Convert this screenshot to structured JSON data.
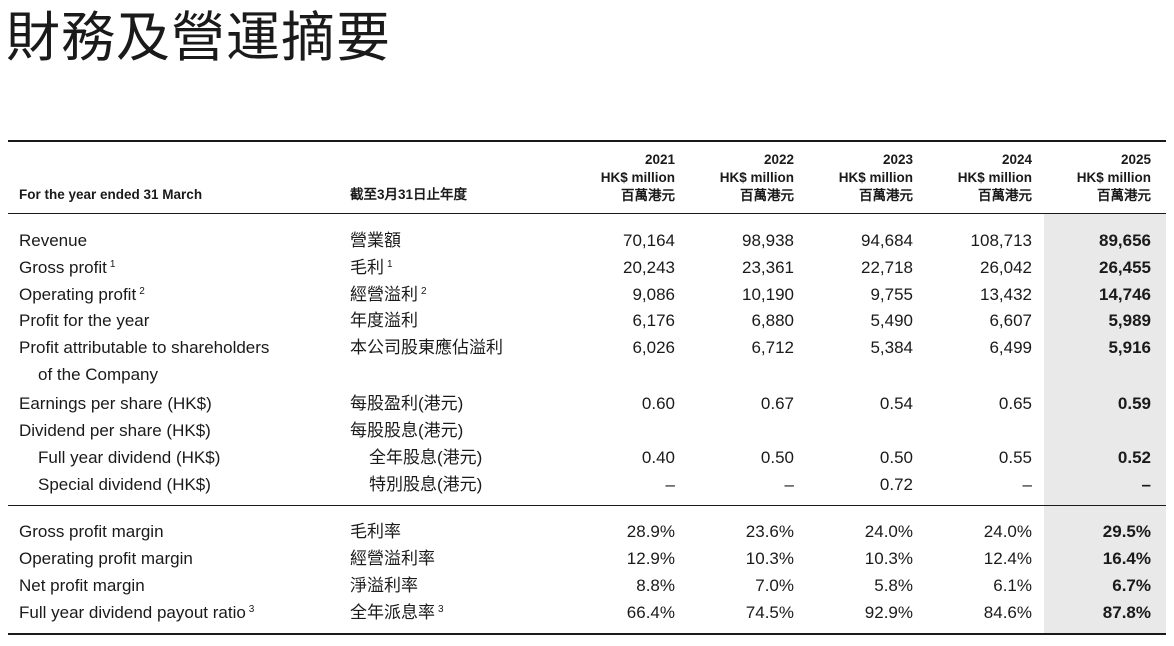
{
  "title": "財務及營運摘要",
  "header": {
    "label_en": "For the year ended 31 March",
    "label_zh": "截至3月31日止年度",
    "unit_en": "HK$ million",
    "unit_zh": "百萬港元",
    "years": [
      "2021",
      "2022",
      "2023",
      "2024",
      "2025"
    ]
  },
  "rows": [
    {
      "en": "Revenue",
      "zh": "營業額",
      "note": "",
      "values": [
        "70,164",
        "98,938",
        "94,684",
        "108,713",
        "89,656"
      ]
    },
    {
      "en": "Gross profit",
      "zh": "毛利",
      "note": "1",
      "values": [
        "20,243",
        "23,361",
        "22,718",
        "26,042",
        "26,455"
      ]
    },
    {
      "en": "Operating profit",
      "zh": "經營溢利",
      "note": "2",
      "values": [
        "9,086",
        "10,190",
        "9,755",
        "13,432",
        "14,746"
      ]
    },
    {
      "en": "Profit for the year",
      "zh": "年度溢利",
      "note": "",
      "values": [
        "6,176",
        "6,880",
        "5,490",
        "6,607",
        "5,989"
      ]
    },
    {
      "en": "Profit attributable to shareholders",
      "en2": "of the Company",
      "zh": "本公司股東應佔溢利",
      "note": "",
      "values": [
        "6,026",
        "6,712",
        "5,384",
        "6,499",
        "5,916"
      ]
    },
    {
      "en": "Earnings per share (HK$)",
      "zh": "每股盈利(港元)",
      "note": "",
      "values": [
        "0.60",
        "0.67",
        "0.54",
        "0.65",
        "0.59"
      ]
    },
    {
      "en": "Dividend per share (HK$)",
      "zh": "每股股息(港元)",
      "note": "",
      "values": [
        "",
        "",
        "",
        "",
        ""
      ]
    },
    {
      "en": "Full year dividend (HK$)",
      "zh": "全年股息(港元)",
      "note": "",
      "indent": true,
      "values": [
        "0.40",
        "0.50",
        "0.50",
        "0.55",
        "0.52"
      ]
    },
    {
      "en": "Special dividend (HK$)",
      "zh": "特別股息(港元)",
      "note": "",
      "indent": true,
      "values": [
        "–",
        "–",
        "0.72",
        "–",
        "–"
      ]
    }
  ],
  "ratios": [
    {
      "en": "Gross profit margin",
      "zh": "毛利率",
      "note": "",
      "values": [
        "28.9%",
        "23.6%",
        "24.0%",
        "24.0%",
        "29.5%"
      ]
    },
    {
      "en": "Operating profit margin",
      "zh": "經營溢利率",
      "note": "",
      "values": [
        "12.9%",
        "10.3%",
        "10.3%",
        "12.4%",
        "16.4%"
      ]
    },
    {
      "en": "Net profit margin",
      "zh": "淨溢利率",
      "note": "",
      "values": [
        "8.8%",
        "7.0%",
        "5.8%",
        "6.1%",
        "6.7%"
      ]
    },
    {
      "en": "Full year dividend payout ratio",
      "zh": "全年派息率",
      "note": "3",
      "values": [
        "66.4%",
        "74.5%",
        "92.9%",
        "84.6%",
        "87.8%"
      ]
    }
  ],
  "colors": {
    "highlight": "#e9e9e9",
    "text": "#1a1a1a"
  }
}
